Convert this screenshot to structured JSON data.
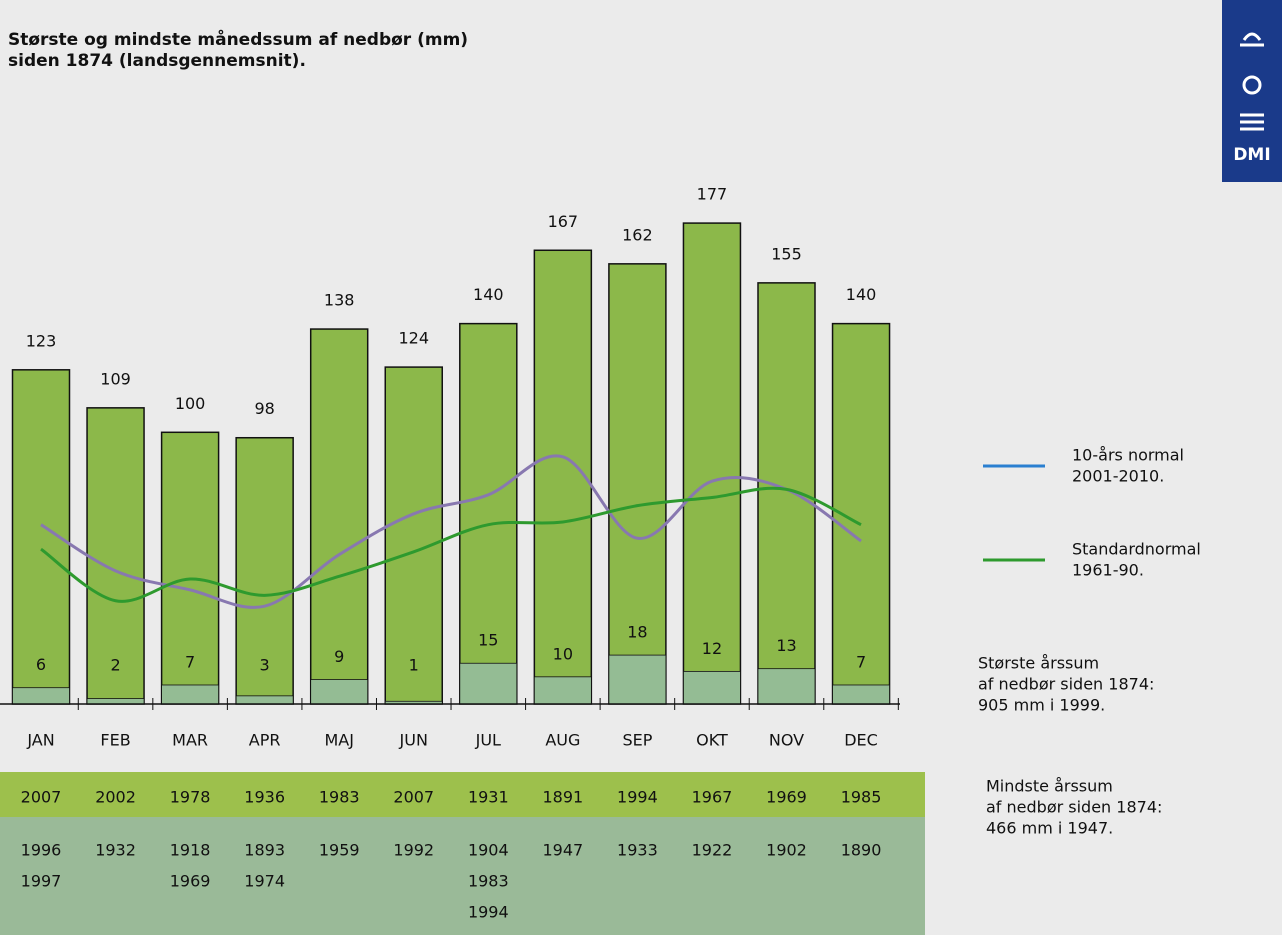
{
  "chart_data": {
    "type": "bar",
    "title": [
      "Største og mindste månedssum af nedbør (mm)",
      "siden 1874 (landsgennemsnit)."
    ],
    "logo": "DMI",
    "categories": [
      "JAN",
      "FEB",
      "MAR",
      "APR",
      "MAJ",
      "JUN",
      "JUL",
      "AUG",
      "SEP",
      "OKT",
      "NOV",
      "DEC"
    ],
    "ylim": [
      0,
      200
    ],
    "series": [
      {
        "name": "Største",
        "color": "#8cb84a",
        "values": [
          123,
          109,
          100,
          98,
          138,
          124,
          140,
          167,
          162,
          177,
          155,
          140
        ]
      },
      {
        "name": "Mindste",
        "color": "#94bc94",
        "values": [
          6,
          2,
          7,
          3,
          9,
          1,
          15,
          10,
          18,
          12,
          13,
          7
        ]
      }
    ],
    "lines": [
      {
        "name": [
          "10-års normal",
          "2001-2010."
        ],
        "color": "#8878b0",
        "legend_color": "#2a7fd0",
        "values": [
          66,
          49,
          42,
          36,
          55,
          70,
          77,
          91,
          61,
          82,
          79,
          60
        ]
      },
      {
        "name": [
          "Standardnormal",
          "1961-90."
        ],
        "color": "#2e9a2e",
        "legend_color": "#2e9a2e",
        "values": [
          57,
          38,
          46,
          40,
          47,
          56,
          66,
          67,
          73,
          76,
          79,
          66
        ]
      }
    ],
    "max_years": [
      "2007",
      "2002",
      "1978",
      "1936",
      "1983",
      "2007",
      "1931",
      "1891",
      "1994",
      "1967",
      "1969",
      "1985"
    ],
    "min_years": [
      [
        "1996",
        "1997"
      ],
      [
        "1932"
      ],
      [
        "1918",
        "1969"
      ],
      [
        "1893",
        "1974"
      ],
      [
        "1959"
      ],
      [
        "1992"
      ],
      [
        "1904",
        "1983",
        "1994"
      ],
      [
        "1947"
      ],
      [
        "1933"
      ],
      [
        "1922"
      ],
      [
        "1902"
      ],
      [
        "1890"
      ]
    ],
    "annotations": [
      [
        "Største årssum",
        "af nedbør siden 1874:",
        "905 mm i 1999."
      ],
      [
        "Mindste årssum",
        "af nedbør siden 1874:",
        "466 mm i 1947."
      ]
    ]
  }
}
